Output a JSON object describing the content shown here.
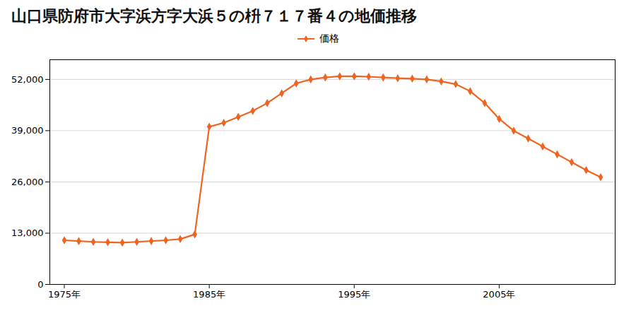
{
  "chart_data": {
    "type": "line",
    "title": "山口県防府市大字浜方字大浜５の枡７１７番４の地価推移",
    "x": [
      1975,
      1976,
      1977,
      1978,
      1979,
      1980,
      1981,
      1982,
      1983,
      1984,
      1985,
      1986,
      1987,
      1988,
      1989,
      1990,
      1991,
      1992,
      1993,
      1994,
      1995,
      1996,
      1997,
      1998,
      1999,
      2000,
      2001,
      2002,
      2003,
      2004,
      2005,
      2006,
      2007,
      2008,
      2009,
      2010,
      2011,
      2012
    ],
    "series": [
      {
        "name": "価格",
        "color": "#f06422",
        "marker": "diamond",
        "line_style": "solid",
        "values": [
          11200,
          11000,
          10800,
          10700,
          10600,
          10800,
          11000,
          11200,
          11500,
          12700,
          40000,
          41000,
          42500,
          44000,
          46000,
          48500,
          51000,
          52000,
          52500,
          52800,
          52800,
          52700,
          52500,
          52300,
          52200,
          52000,
          51500,
          50800,
          49000,
          46000,
          42000,
          39000,
          37000,
          35000,
          33000,
          31000,
          29000,
          27200
        ]
      }
    ],
    "xlim": [
      1974,
      2013
    ],
    "xticks": [
      {
        "value": 1975,
        "label": "1975年"
      },
      {
        "value": 1985,
        "label": "1985年"
      },
      {
        "value": 1995,
        "label": "1995年"
      },
      {
        "value": 2005,
        "label": "2005年"
      }
    ],
    "ylim": [
      0,
      57000
    ],
    "yticks": [
      0,
      {
        "value": 13000,
        "label": "13,000"
      },
      {
        "value": 26000,
        "label": "26,000"
      },
      {
        "value": 39000,
        "label": "39,000"
      },
      {
        "value": 52000,
        "label": "52,000"
      }
    ],
    "grid": "y",
    "legend": "top"
  }
}
